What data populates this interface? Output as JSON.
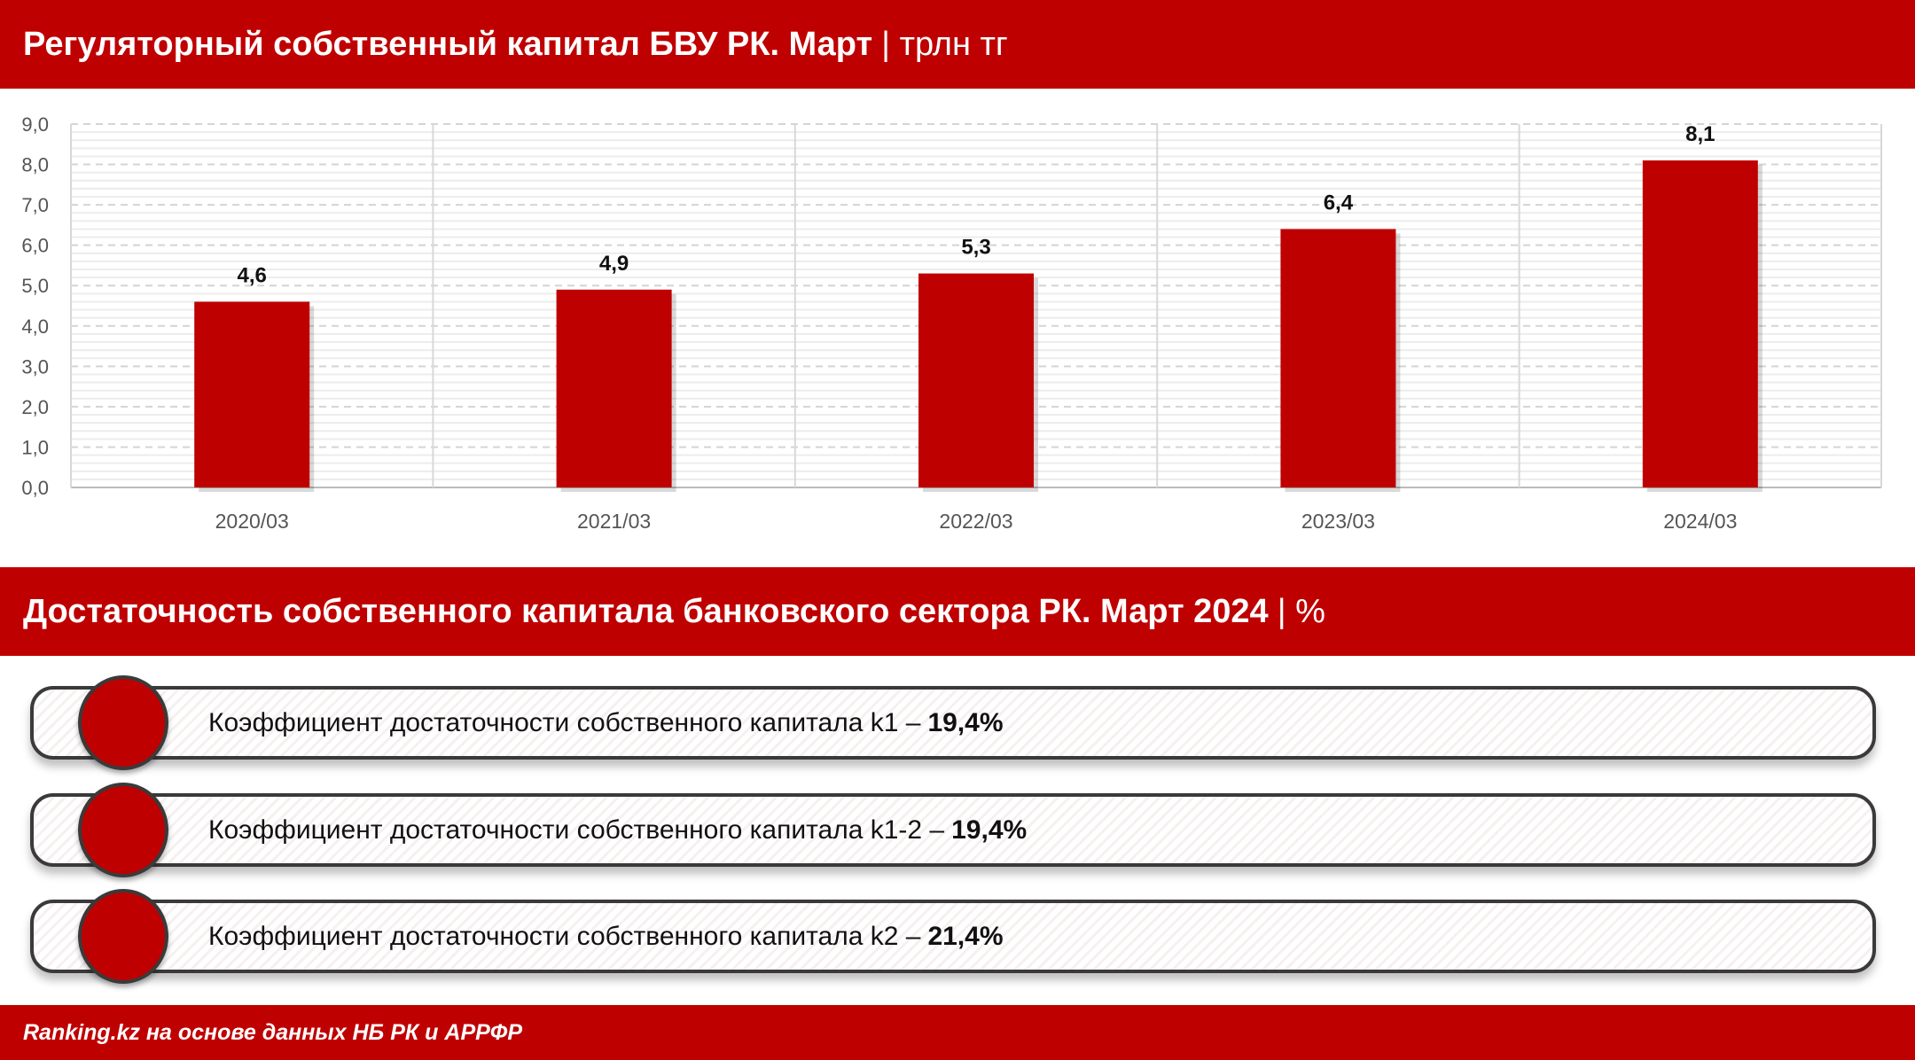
{
  "header1": {
    "title": "Регуляторный собственный капитал БВУ РК. Март",
    "unit": "| трлн тг"
  },
  "header2": {
    "title": "Достаточность собственного капитала банковского сектора РК. Март 2024",
    "unit": "| %"
  },
  "chart_data": {
    "type": "bar",
    "categories": [
      "2020/03",
      "2021/03",
      "2022/03",
      "2023/03",
      "2024/03"
    ],
    "values": [
      4.6,
      4.9,
      5.3,
      6.4,
      8.1
    ],
    "value_labels": [
      "4,6",
      "4,9",
      "5,3",
      "6,4",
      "8,1"
    ],
    "yticks": [
      "0,0",
      "1,0",
      "2,0",
      "3,0",
      "4,0",
      "5,0",
      "6,0",
      "7,0",
      "8,0",
      "9,0"
    ],
    "ylim": [
      0,
      9
    ],
    "grid": true,
    "bar_color": "#bf0000"
  },
  "ratios": [
    {
      "label": "Коэффициент достаточности собственного капитала k1 –",
      "value": "19,4%"
    },
    {
      "label": "Коэффициент достаточности собственного капитала k1-2 –",
      "value": "19,4%"
    },
    {
      "label": "Коэффициент достаточности собственного капитала k2 –",
      "value": "21,4%"
    }
  ],
  "footer": {
    "source": "Ranking.kz на основе данных НБ РК и АРРФР"
  },
  "colors": {
    "accent": "#bf0000"
  }
}
